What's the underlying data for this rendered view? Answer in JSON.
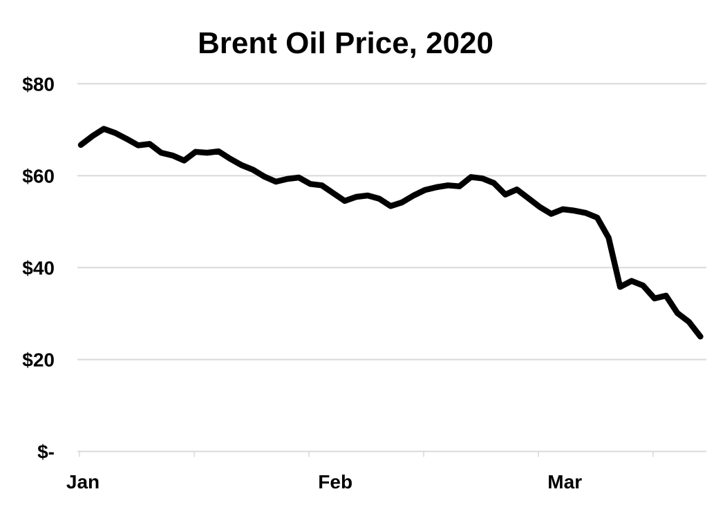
{
  "title": "Brent Oil Price, 2020",
  "chart_data": {
    "type": "line",
    "title": "Brent Oil Price, 2020",
    "x": [
      "Jan 2",
      "Jan 3",
      "Jan 6",
      "Jan 7",
      "Jan 8",
      "Jan 9",
      "Jan 10",
      "Jan 13",
      "Jan 14",
      "Jan 15",
      "Jan 16",
      "Jan 17",
      "Jan 20",
      "Jan 21",
      "Jan 22",
      "Jan 23",
      "Jan 24",
      "Jan 27",
      "Jan 28",
      "Jan 29",
      "Jan 30",
      "Jan 31",
      "Feb 3",
      "Feb 4",
      "Feb 5",
      "Feb 6",
      "Feb 7",
      "Feb 10",
      "Feb 11",
      "Feb 12",
      "Feb 13",
      "Feb 14",
      "Feb 17",
      "Feb 18",
      "Feb 19",
      "Feb 20",
      "Feb 21",
      "Feb 24",
      "Feb 25",
      "Feb 26",
      "Feb 27",
      "Feb 28",
      "Mar 2",
      "Mar 3",
      "Mar 4",
      "Mar 5",
      "Mar 6",
      "Mar 9",
      "Mar 10",
      "Mar 11",
      "Mar 12",
      "Mar 13",
      "Mar 16",
      "Mar 17",
      "Mar 18"
    ],
    "values": [
      66.7,
      68.6,
      70.2,
      69.3,
      68.0,
      66.6,
      66.9,
      65.0,
      64.4,
      63.3,
      65.2,
      65.0,
      65.3,
      63.7,
      62.3,
      61.3,
      59.8,
      58.7,
      59.3,
      59.6,
      58.2,
      57.9,
      56.2,
      54.5,
      55.4,
      55.7,
      55.0,
      53.4,
      54.2,
      55.7,
      56.9,
      57.5,
      57.9,
      57.7,
      59.7,
      59.4,
      58.4,
      55.9,
      57.0,
      55.1,
      53.2,
      51.7,
      52.7,
      52.4,
      51.9,
      50.9,
      46.5,
      35.8,
      37.1,
      36.1,
      33.3,
      33.9,
      30.1,
      28.2,
      25.0
    ],
    "y_ticks": [
      {
        "label": "$80",
        "value": 80
      },
      {
        "label": "$60",
        "value": 60
      },
      {
        "label": "$40",
        "value": 40
      },
      {
        "label": "$20",
        "value": 20
      },
      {
        "label": "$-",
        "value": 0
      }
    ],
    "x_month_labels": [
      {
        "label": "Jan",
        "day_index": 0
      },
      {
        "label": "Feb",
        "day_index": 22
      },
      {
        "label": "Mar",
        "day_index": 42
      }
    ],
    "x_tick_day_indices": [
      0,
      10,
      20,
      30,
      40,
      50
    ],
    "ylim": [
      0,
      80
    ],
    "grid": "horizontal",
    "legend": "none",
    "line_color": "#000000",
    "gridline_color": "#d9d9d9",
    "axis_color": "#d9d9d9",
    "text_color": "#000000"
  }
}
